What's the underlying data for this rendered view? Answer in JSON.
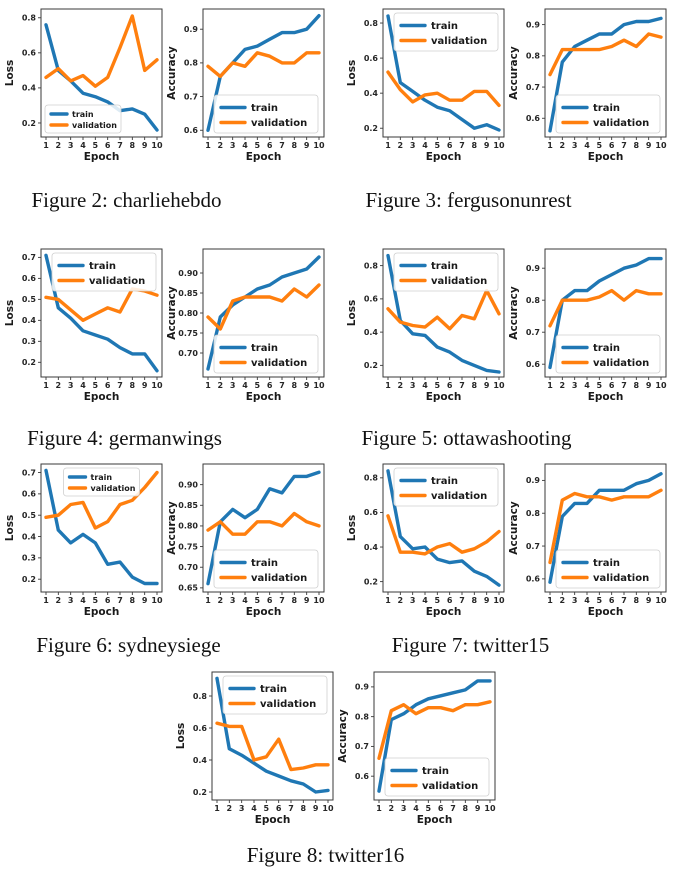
{
  "colors": {
    "train": "#1f77b4",
    "validation": "#ff7f0e",
    "axis": "#3a3a3a"
  },
  "captions": [
    "Figure 2: charliehebdo",
    "Figure 3: fergusonunrest",
    "Figure 4: germanwings",
    "Figure 5: ottawashooting",
    "Figure 6: sydneysiege",
    "Figure 7: twitter15",
    "Figure 8: twitter16"
  ],
  "chart_data": [
    {
      "id": "fig2-loss",
      "figure": "Figure 2: charliehebdo",
      "type": "line",
      "xlabel": "Epoch",
      "ylabel": "Loss",
      "x": [
        1,
        2,
        3,
        4,
        5,
        6,
        7,
        8,
        9,
        10
      ],
      "yticks": [
        0.2,
        0.4,
        0.6,
        0.8
      ],
      "ydecimals": 1,
      "ylim": [
        0.12,
        0.85
      ],
      "legend_pos": "lower-left",
      "legend_size": "small",
      "series": [
        {
          "name": "train",
          "values": [
            0.76,
            0.5,
            0.44,
            0.37,
            0.35,
            0.32,
            0.27,
            0.28,
            0.25,
            0.16
          ]
        },
        {
          "name": "validation",
          "values": [
            0.46,
            0.51,
            0.44,
            0.47,
            0.41,
            0.46,
            0.63,
            0.81,
            0.5,
            0.56
          ]
        }
      ]
    },
    {
      "id": "fig2-accuracy",
      "figure": "Figure 2: charliehebdo",
      "type": "line",
      "xlabel": "Epoch",
      "ylabel": "Accuracy",
      "x": [
        1,
        2,
        3,
        4,
        5,
        6,
        7,
        8,
        9,
        10
      ],
      "yticks": [
        0.6,
        0.7,
        0.8,
        0.9
      ],
      "ydecimals": 1,
      "ylim": [
        0.58,
        0.96
      ],
      "legend_pos": "lower-right",
      "legend_size": "normal",
      "series": [
        {
          "name": "train",
          "values": [
            0.6,
            0.76,
            0.8,
            0.84,
            0.85,
            0.87,
            0.89,
            0.89,
            0.9,
            0.94
          ]
        },
        {
          "name": "validation",
          "values": [
            0.79,
            0.76,
            0.8,
            0.79,
            0.83,
            0.82,
            0.8,
            0.8,
            0.83,
            0.83
          ]
        }
      ]
    },
    {
      "id": "fig3-loss",
      "figure": "Figure 3: fergusonunrest",
      "type": "line",
      "xlabel": "Epoch",
      "ylabel": "Loss",
      "x": [
        1,
        2,
        3,
        4,
        5,
        6,
        7,
        8,
        9,
        10
      ],
      "yticks": [
        0.2,
        0.4,
        0.6,
        0.8
      ],
      "ydecimals": 1,
      "ylim": [
        0.15,
        0.88
      ],
      "legend_pos": "upper-right",
      "legend_size": "normal",
      "series": [
        {
          "name": "train",
          "values": [
            0.84,
            0.46,
            0.41,
            0.36,
            0.32,
            0.3,
            0.25,
            0.2,
            0.22,
            0.19
          ]
        },
        {
          "name": "validation",
          "values": [
            0.52,
            0.42,
            0.35,
            0.39,
            0.4,
            0.36,
            0.36,
            0.41,
            0.41,
            0.33
          ]
        }
      ]
    },
    {
      "id": "fig3-accuracy",
      "figure": "Figure 3: fergusonunrest",
      "type": "line",
      "xlabel": "Epoch",
      "ylabel": "Accuracy",
      "x": [
        1,
        2,
        3,
        4,
        5,
        6,
        7,
        8,
        9,
        10
      ],
      "yticks": [
        0.6,
        0.7,
        0.8,
        0.9
      ],
      "ydecimals": 1,
      "ylim": [
        0.54,
        0.95
      ],
      "legend_pos": "lower-right",
      "legend_size": "normal",
      "series": [
        {
          "name": "train",
          "values": [
            0.56,
            0.78,
            0.83,
            0.85,
            0.87,
            0.87,
            0.9,
            0.91,
            0.91,
            0.92
          ]
        },
        {
          "name": "validation",
          "values": [
            0.74,
            0.82,
            0.82,
            0.82,
            0.82,
            0.83,
            0.85,
            0.83,
            0.87,
            0.86
          ]
        }
      ]
    },
    {
      "id": "fig4-loss",
      "figure": "Figure 4: germanwings",
      "type": "line",
      "xlabel": "Epoch",
      "ylabel": "Loss",
      "x": [
        1,
        2,
        3,
        4,
        5,
        6,
        7,
        8,
        9,
        10
      ],
      "yticks": [
        0.2,
        0.3,
        0.4,
        0.5,
        0.6,
        0.7
      ],
      "ydecimals": 1,
      "ylim": [
        0.13,
        0.74
      ],
      "legend_pos": "upper-right",
      "legend_size": "normal",
      "series": [
        {
          "name": "train",
          "values": [
            0.71,
            0.46,
            0.41,
            0.35,
            0.33,
            0.31,
            0.27,
            0.24,
            0.24,
            0.16
          ]
        },
        {
          "name": "validation",
          "values": [
            0.51,
            0.5,
            0.45,
            0.4,
            0.43,
            0.46,
            0.44,
            0.55,
            0.54,
            0.52
          ]
        }
      ]
    },
    {
      "id": "fig4-accuracy",
      "figure": "Figure 4: germanwings",
      "type": "line",
      "xlabel": "Epoch",
      "ylabel": "Accuracy",
      "x": [
        1,
        2,
        3,
        4,
        5,
        6,
        7,
        8,
        9,
        10
      ],
      "yticks": [
        0.7,
        0.75,
        0.8,
        0.85,
        0.9
      ],
      "ydecimals": 2,
      "ylim": [
        0.64,
        0.96
      ],
      "legend_pos": "lower-right",
      "legend_size": "normal",
      "series": [
        {
          "name": "train",
          "values": [
            0.66,
            0.79,
            0.82,
            0.84,
            0.86,
            0.87,
            0.89,
            0.9,
            0.91,
            0.94
          ]
        },
        {
          "name": "validation",
          "values": [
            0.79,
            0.76,
            0.83,
            0.84,
            0.84,
            0.84,
            0.83,
            0.86,
            0.84,
            0.87
          ]
        }
      ]
    },
    {
      "id": "fig5-loss",
      "figure": "Figure 5: ottawashooting",
      "type": "line",
      "xlabel": "Epoch",
      "ylabel": "Loss",
      "x": [
        1,
        2,
        3,
        4,
        5,
        6,
        7,
        8,
        9,
        10
      ],
      "yticks": [
        0.2,
        0.4,
        0.6,
        0.8
      ],
      "ydecimals": 1,
      "ylim": [
        0.13,
        0.9
      ],
      "legend_pos": "upper-right",
      "legend_size": "normal",
      "series": [
        {
          "name": "train",
          "values": [
            0.86,
            0.47,
            0.39,
            0.38,
            0.31,
            0.28,
            0.23,
            0.2,
            0.17,
            0.16
          ]
        },
        {
          "name": "validation",
          "values": [
            0.54,
            0.46,
            0.44,
            0.43,
            0.49,
            0.42,
            0.5,
            0.48,
            0.65,
            0.51
          ]
        }
      ]
    },
    {
      "id": "fig5-accuracy",
      "figure": "Figure 5: ottawashooting",
      "type": "line",
      "xlabel": "Epoch",
      "ylabel": "Accuracy",
      "x": [
        1,
        2,
        3,
        4,
        5,
        6,
        7,
        8,
        9,
        10
      ],
      "yticks": [
        0.6,
        0.7,
        0.8,
        0.9
      ],
      "ydecimals": 1,
      "ylim": [
        0.56,
        0.96
      ],
      "legend_pos": "lower-right",
      "legend_size": "normal",
      "series": [
        {
          "name": "train",
          "values": [
            0.59,
            0.8,
            0.83,
            0.83,
            0.86,
            0.88,
            0.9,
            0.91,
            0.93,
            0.93
          ]
        },
        {
          "name": "validation",
          "values": [
            0.72,
            0.8,
            0.8,
            0.8,
            0.81,
            0.83,
            0.8,
            0.83,
            0.82,
            0.82
          ]
        }
      ]
    },
    {
      "id": "fig6-loss",
      "figure": "Figure 6: sydneysiege",
      "type": "line",
      "xlabel": "Epoch",
      "ylabel": "Loss",
      "x": [
        1,
        2,
        3,
        4,
        5,
        6,
        7,
        8,
        9,
        10
      ],
      "yticks": [
        0.2,
        0.3,
        0.4,
        0.5,
        0.6,
        0.7
      ],
      "ydecimals": 1,
      "ylim": [
        0.14,
        0.74
      ],
      "legend_pos": "upper-center",
      "legend_size": "small",
      "series": [
        {
          "name": "train",
          "values": [
            0.71,
            0.43,
            0.37,
            0.41,
            0.37,
            0.27,
            0.28,
            0.21,
            0.18,
            0.18
          ]
        },
        {
          "name": "validation",
          "values": [
            0.49,
            0.5,
            0.55,
            0.56,
            0.44,
            0.47,
            0.55,
            0.57,
            0.63,
            0.7
          ]
        }
      ]
    },
    {
      "id": "fig6-accuracy",
      "figure": "Figure 6: sydneysiege",
      "type": "line",
      "xlabel": "Epoch",
      "ylabel": "Accuracy",
      "x": [
        1,
        2,
        3,
        4,
        5,
        6,
        7,
        8,
        9,
        10
      ],
      "yticks": [
        0.65,
        0.7,
        0.75,
        0.8,
        0.85,
        0.9
      ],
      "ydecimals": 2,
      "ylim": [
        0.64,
        0.95
      ],
      "legend_pos": "lower-right",
      "legend_size": "normal",
      "series": [
        {
          "name": "train",
          "values": [
            0.66,
            0.81,
            0.84,
            0.82,
            0.84,
            0.89,
            0.88,
            0.92,
            0.92,
            0.93
          ]
        },
        {
          "name": "validation",
          "values": [
            0.79,
            0.81,
            0.78,
            0.78,
            0.81,
            0.81,
            0.8,
            0.83,
            0.81,
            0.8
          ]
        }
      ]
    },
    {
      "id": "fig7-loss",
      "figure": "Figure 7: twitter15",
      "type": "line",
      "xlabel": "Epoch",
      "ylabel": "Loss",
      "x": [
        1,
        2,
        3,
        4,
        5,
        6,
        7,
        8,
        9,
        10
      ],
      "yticks": [
        0.2,
        0.4,
        0.6,
        0.8
      ],
      "ydecimals": 1,
      "ylim": [
        0.14,
        0.88
      ],
      "legend_pos": "upper-right",
      "legend_size": "normal",
      "series": [
        {
          "name": "train",
          "values": [
            0.84,
            0.46,
            0.39,
            0.4,
            0.33,
            0.31,
            0.32,
            0.26,
            0.23,
            0.18
          ]
        },
        {
          "name": "validation",
          "values": [
            0.58,
            0.37,
            0.37,
            0.36,
            0.4,
            0.42,
            0.37,
            0.39,
            0.43,
            0.49
          ]
        }
      ]
    },
    {
      "id": "fig7-accuracy",
      "figure": "Figure 7: twitter15",
      "type": "line",
      "xlabel": "Epoch",
      "ylabel": "Accuracy",
      "x": [
        1,
        2,
        3,
        4,
        5,
        6,
        7,
        8,
        9,
        10
      ],
      "yticks": [
        0.6,
        0.7,
        0.8,
        0.9
      ],
      "ydecimals": 1,
      "ylim": [
        0.56,
        0.95
      ],
      "legend_pos": "lower-right",
      "legend_size": "normal",
      "series": [
        {
          "name": "train",
          "values": [
            0.59,
            0.79,
            0.83,
            0.83,
            0.87,
            0.87,
            0.87,
            0.89,
            0.9,
            0.92
          ]
        },
        {
          "name": "validation",
          "values": [
            0.65,
            0.84,
            0.86,
            0.85,
            0.85,
            0.84,
            0.85,
            0.85,
            0.85,
            0.87
          ]
        }
      ]
    },
    {
      "id": "fig8-loss",
      "figure": "Figure 8: twitter16",
      "type": "line",
      "xlabel": "Epoch",
      "ylabel": "Loss",
      "x": [
        1,
        2,
        3,
        4,
        5,
        6,
        7,
        8,
        9,
        10
      ],
      "yticks": [
        0.2,
        0.4,
        0.6,
        0.8
      ],
      "ydecimals": 1,
      "ylim": [
        0.15,
        0.95
      ],
      "legend_pos": "upper-right",
      "legend_size": "normal",
      "series": [
        {
          "name": "train",
          "values": [
            0.91,
            0.47,
            0.43,
            0.38,
            0.33,
            0.3,
            0.27,
            0.25,
            0.2,
            0.21
          ]
        },
        {
          "name": "validation",
          "values": [
            0.63,
            0.61,
            0.61,
            0.4,
            0.42,
            0.53,
            0.34,
            0.35,
            0.37,
            0.37
          ]
        }
      ]
    },
    {
      "id": "fig8-accuracy",
      "figure": "Figure 8: twitter16",
      "type": "line",
      "xlabel": "Epoch",
      "ylabel": "Accuracy",
      "x": [
        1,
        2,
        3,
        4,
        5,
        6,
        7,
        8,
        9,
        10
      ],
      "yticks": [
        0.6,
        0.7,
        0.8,
        0.9
      ],
      "ydecimals": 1,
      "ylim": [
        0.52,
        0.95
      ],
      "legend_pos": "lower-right",
      "legend_size": "normal",
      "series": [
        {
          "name": "train",
          "values": [
            0.55,
            0.79,
            0.81,
            0.84,
            0.86,
            0.87,
            0.88,
            0.89,
            0.92,
            0.92
          ]
        },
        {
          "name": "validation",
          "values": [
            0.66,
            0.82,
            0.84,
            0.81,
            0.83,
            0.83,
            0.82,
            0.84,
            0.84,
            0.85
          ]
        }
      ]
    }
  ]
}
